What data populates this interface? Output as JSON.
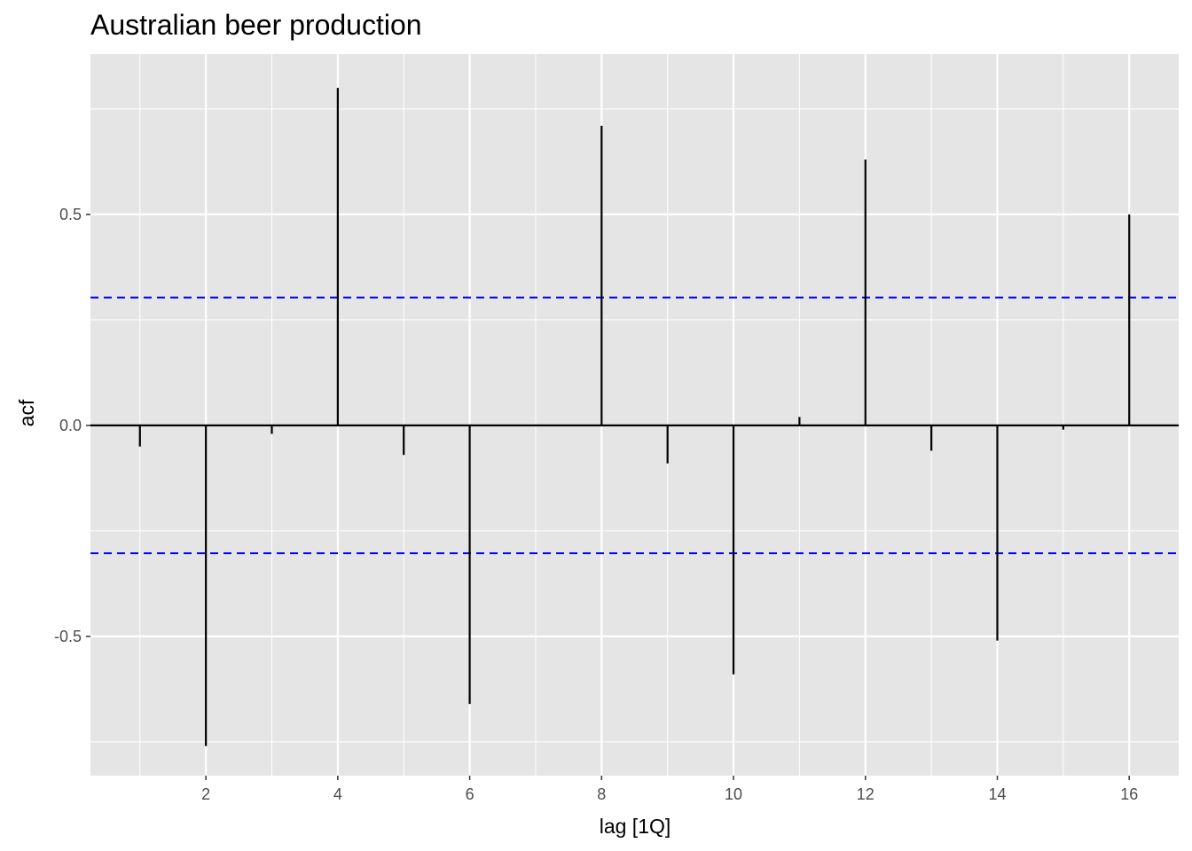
{
  "chart_data": {
    "type": "bar",
    "title": "Australian beer production",
    "xlabel": "lag [1Q]",
    "ylabel": "acf",
    "x": [
      1,
      2,
      3,
      4,
      5,
      6,
      7,
      8,
      9,
      10,
      11,
      12,
      13,
      14,
      15,
      16
    ],
    "values": [
      -0.05,
      -0.76,
      -0.02,
      0.8,
      -0.07,
      -0.66,
      0.0,
      0.71,
      -0.09,
      -0.59,
      0.02,
      0.63,
      -0.06,
      -0.51,
      -0.01,
      0.5
    ],
    "xlim": [
      0.25,
      16.75
    ],
    "ylim": [
      -0.83,
      0.88
    ],
    "x_ticks": [
      2,
      4,
      6,
      8,
      10,
      12,
      14,
      16
    ],
    "x_tick_labels": [
      "2",
      "4",
      "6",
      "8",
      "10",
      "12",
      "14",
      "16"
    ],
    "y_ticks": [
      -0.5,
      0.0,
      0.5
    ],
    "y_tick_labels": [
      "-0.5",
      "0.0",
      "0.5"
    ],
    "confidence_bounds": [
      0.303,
      -0.303
    ],
    "bound_color": "#0000ff",
    "spike_color": "#000000",
    "panel_background": "#e5e5e5",
    "grid_color": "#ffffff",
    "grid": true
  }
}
